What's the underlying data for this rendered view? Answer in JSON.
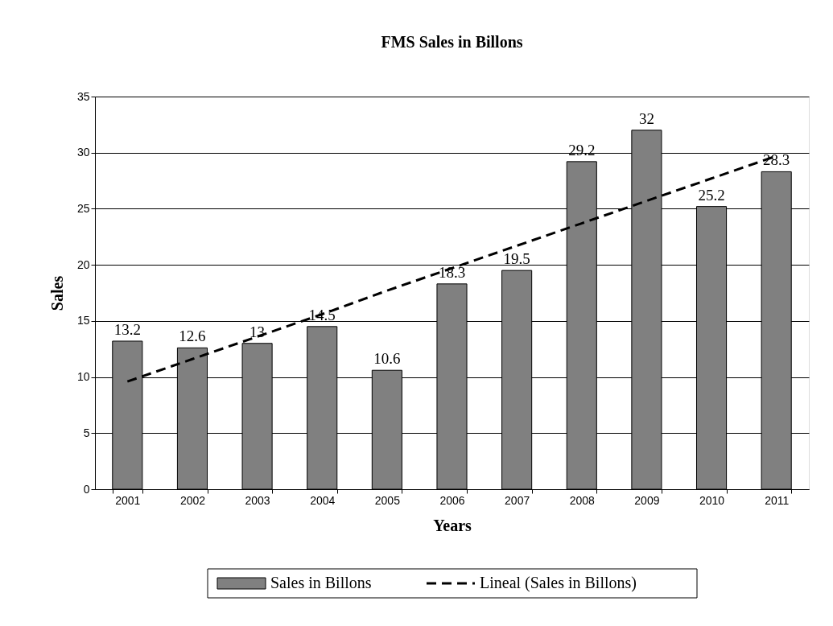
{
  "chart_data": {
    "type": "bar",
    "title": "FMS Sales in Billons",
    "xlabel": "Years",
    "ylabel": "Sales",
    "categories": [
      "2001",
      "2002",
      "2003",
      "2004",
      "2005",
      "2006",
      "2007",
      "2008",
      "2009",
      "2010",
      "2011"
    ],
    "series": [
      {
        "name": "Sales in Billons",
        "color": "#808080",
        "values": [
          13.2,
          12.6,
          13,
          14.5,
          10.6,
          18.3,
          19.5,
          29.2,
          32,
          25.2,
          28.3
        ],
        "data_labels": true
      },
      {
        "name": "Lineal (Sales in Billons)",
        "type": "line",
        "color": "#000000",
        "line_style": "dashed",
        "values": [
          9.6,
          11.6,
          13.6,
          15.6,
          17.7,
          19.7,
          21.7,
          23.7,
          25.7,
          27.7,
          29.7
        ]
      }
    ],
    "ylim": [
      0,
      35
    ],
    "yticks": [
      0,
      5,
      10,
      15,
      20,
      25,
      30,
      35
    ],
    "grid": "y",
    "legend": "bottom"
  }
}
